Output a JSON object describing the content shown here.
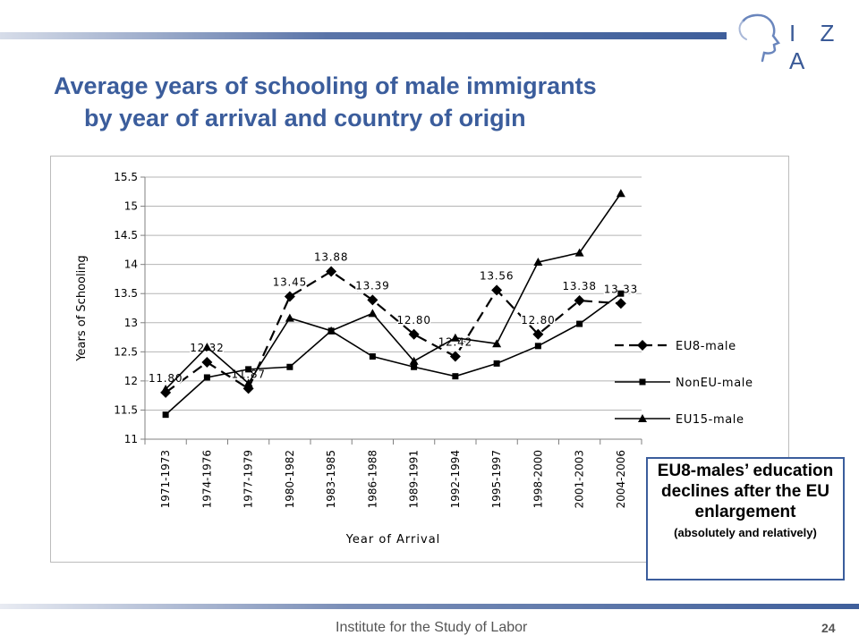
{
  "header": {
    "logo_text": "I Z A"
  },
  "slide": {
    "title_line1": "Average years of schooling of male immigrants",
    "title_line2": "by year of arrival and country of origin"
  },
  "chart_data": {
    "type": "line",
    "xlabel": "Year of Arrival",
    "ylabel": "Years of Schooling",
    "ylim": [
      11,
      15.5
    ],
    "yticks": [
      "11",
      "11.5",
      "12",
      "12.5",
      "13",
      "13.5",
      "14",
      "14.5",
      "15",
      "15.5"
    ],
    "grid": true,
    "legend_position": "right",
    "categories": [
      "1971-1973",
      "1974-1976",
      "1977-1979",
      "1980-1982",
      "1983-1985",
      "1986-1988",
      "1989-1991",
      "1992-1994",
      "1995-1997",
      "1998-2000",
      "2001-2003",
      "2004-2006"
    ],
    "series": [
      {
        "name": "EU8-male",
        "marker": "diamond",
        "line": "dashed",
        "values": [
          11.8,
          12.32,
          11.87,
          13.45,
          13.88,
          13.39,
          12.8,
          12.42,
          13.56,
          12.8,
          13.38,
          13.33
        ],
        "labels": [
          "11.80",
          "12.32",
          "11.87",
          "13.45",
          "13.88",
          "13.39",
          "12.80",
          "12.42",
          "13.56",
          "12.80",
          "13.38",
          "13.33"
        ]
      },
      {
        "name": "NonEU-male",
        "marker": "square",
        "line": "solid",
        "values": [
          11.42,
          12.06,
          12.2,
          12.24,
          12.86,
          12.42,
          12.24,
          12.08,
          12.3,
          12.6,
          12.98,
          13.5
        ]
      },
      {
        "name": "EU15-male",
        "marker": "triangle",
        "line": "solid",
        "values": [
          11.86,
          12.58,
          11.96,
          13.08,
          12.86,
          13.16,
          12.34,
          12.74,
          12.64,
          14.04,
          14.2,
          15.22
        ]
      }
    ],
    "color": "#000000"
  },
  "callout": {
    "main": "EU8-males’ education declines after the EU enlargement",
    "sub": "(absolutely and relatively)"
  },
  "footer": {
    "org": "Institute for the Study of Labor",
    "page": "24"
  }
}
